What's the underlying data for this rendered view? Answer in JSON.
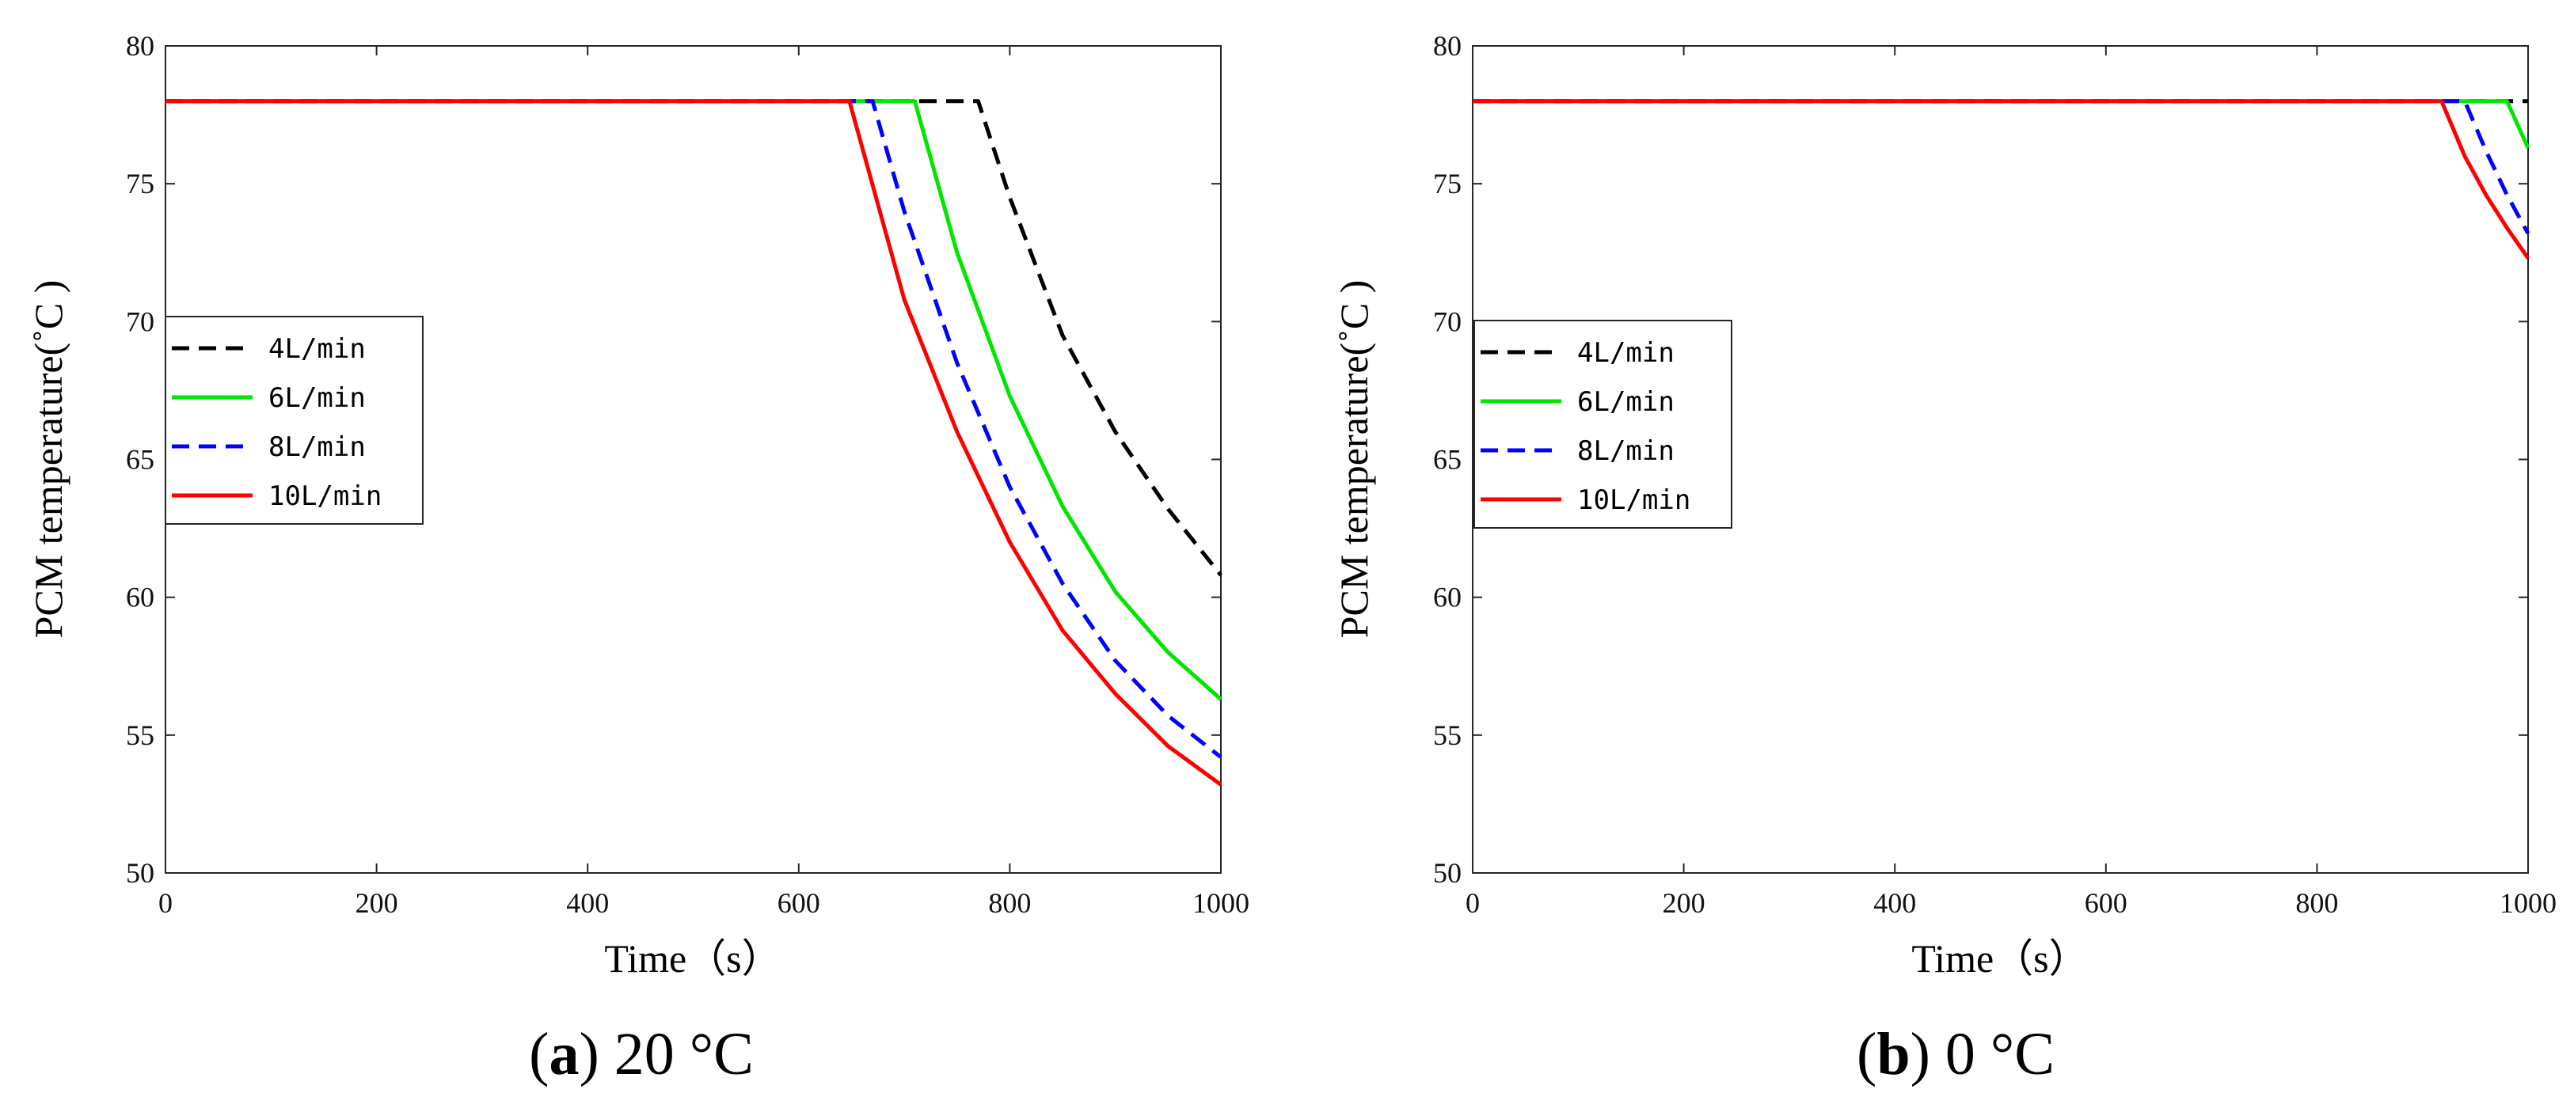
{
  "chart_data": [
    {
      "id": "a",
      "type": "line",
      "caption": {
        "open": "(",
        "letter": "a",
        "close": ")",
        "text": " 20 °C"
      },
      "xlabel": "Time（s）",
      "ylabel": "PCM temperature(˚C )",
      "xlim": [
        0,
        1000
      ],
      "ylim": [
        50,
        80
      ],
      "xticks": [
        0,
        200,
        400,
        600,
        800,
        1000
      ],
      "yticks": [
        50,
        55,
        60,
        65,
        70,
        75,
        80
      ],
      "legend_position": "middle-left",
      "series": [
        {
          "name": "4L/min",
          "color": "#000000",
          "dash": "dashed",
          "x": [
            0,
            770,
            800,
            850,
            900,
            950,
            1000
          ],
          "y": [
            78,
            78,
            74.5,
            69.5,
            66,
            63.2,
            60.8
          ]
        },
        {
          "name": "6L/min",
          "color": "#00e600",
          "dash": "solid",
          "x": [
            0,
            710,
            750,
            800,
            850,
            900,
            950,
            1000
          ],
          "y": [
            78,
            78,
            72.5,
            67.3,
            63.3,
            60.2,
            58,
            56.3
          ]
        },
        {
          "name": "8L/min",
          "color": "#0000ff",
          "dash": "dashed",
          "x": [
            0,
            670,
            700,
            750,
            800,
            850,
            900,
            950,
            1000
          ],
          "y": [
            78,
            78,
            74,
            68.5,
            64,
            60.5,
            57.7,
            55.7,
            54.2
          ]
        },
        {
          "name": "10L/min",
          "color": "#ff0000",
          "dash": "solid",
          "x": [
            0,
            648,
            700,
            750,
            800,
            850,
            900,
            950,
            1000
          ],
          "y": [
            78,
            78,
            70.8,
            66,
            62,
            58.8,
            56.5,
            54.6,
            53.2
          ]
        }
      ]
    },
    {
      "id": "b",
      "type": "line",
      "caption": {
        "open": "(",
        "letter": "b",
        "close": ")",
        "text": " 0 °C"
      },
      "xlabel": "Time（s）",
      "ylabel": "PCM temperature(˚C )",
      "xlim": [
        0,
        1000
      ],
      "ylim": [
        50,
        80
      ],
      "xticks": [
        0,
        200,
        400,
        600,
        800,
        1000
      ],
      "yticks": [
        50,
        55,
        60,
        65,
        70,
        75,
        80
      ],
      "legend_position": "middle-left",
      "series": [
        {
          "name": "4L/min",
          "color": "#000000",
          "dash": "dashed",
          "x": [
            0,
            1000
          ],
          "y": [
            78,
            78
          ]
        },
        {
          "name": "6L/min",
          "color": "#00e600",
          "dash": "solid",
          "x": [
            0,
            980,
            1000
          ],
          "y": [
            78,
            78,
            76.3
          ]
        },
        {
          "name": "8L/min",
          "color": "#0000ff",
          "dash": "dashed",
          "x": [
            0,
            940,
            960,
            980,
            1000
          ],
          "y": [
            78,
            78,
            76.2,
            74.6,
            73.2
          ]
        },
        {
          "name": "10L/min",
          "color": "#ff0000",
          "dash": "solid",
          "x": [
            0,
            918,
            940,
            960,
            980,
            1000
          ],
          "y": [
            78,
            78,
            76,
            74.6,
            73.4,
            72.3
          ]
        }
      ]
    }
  ]
}
